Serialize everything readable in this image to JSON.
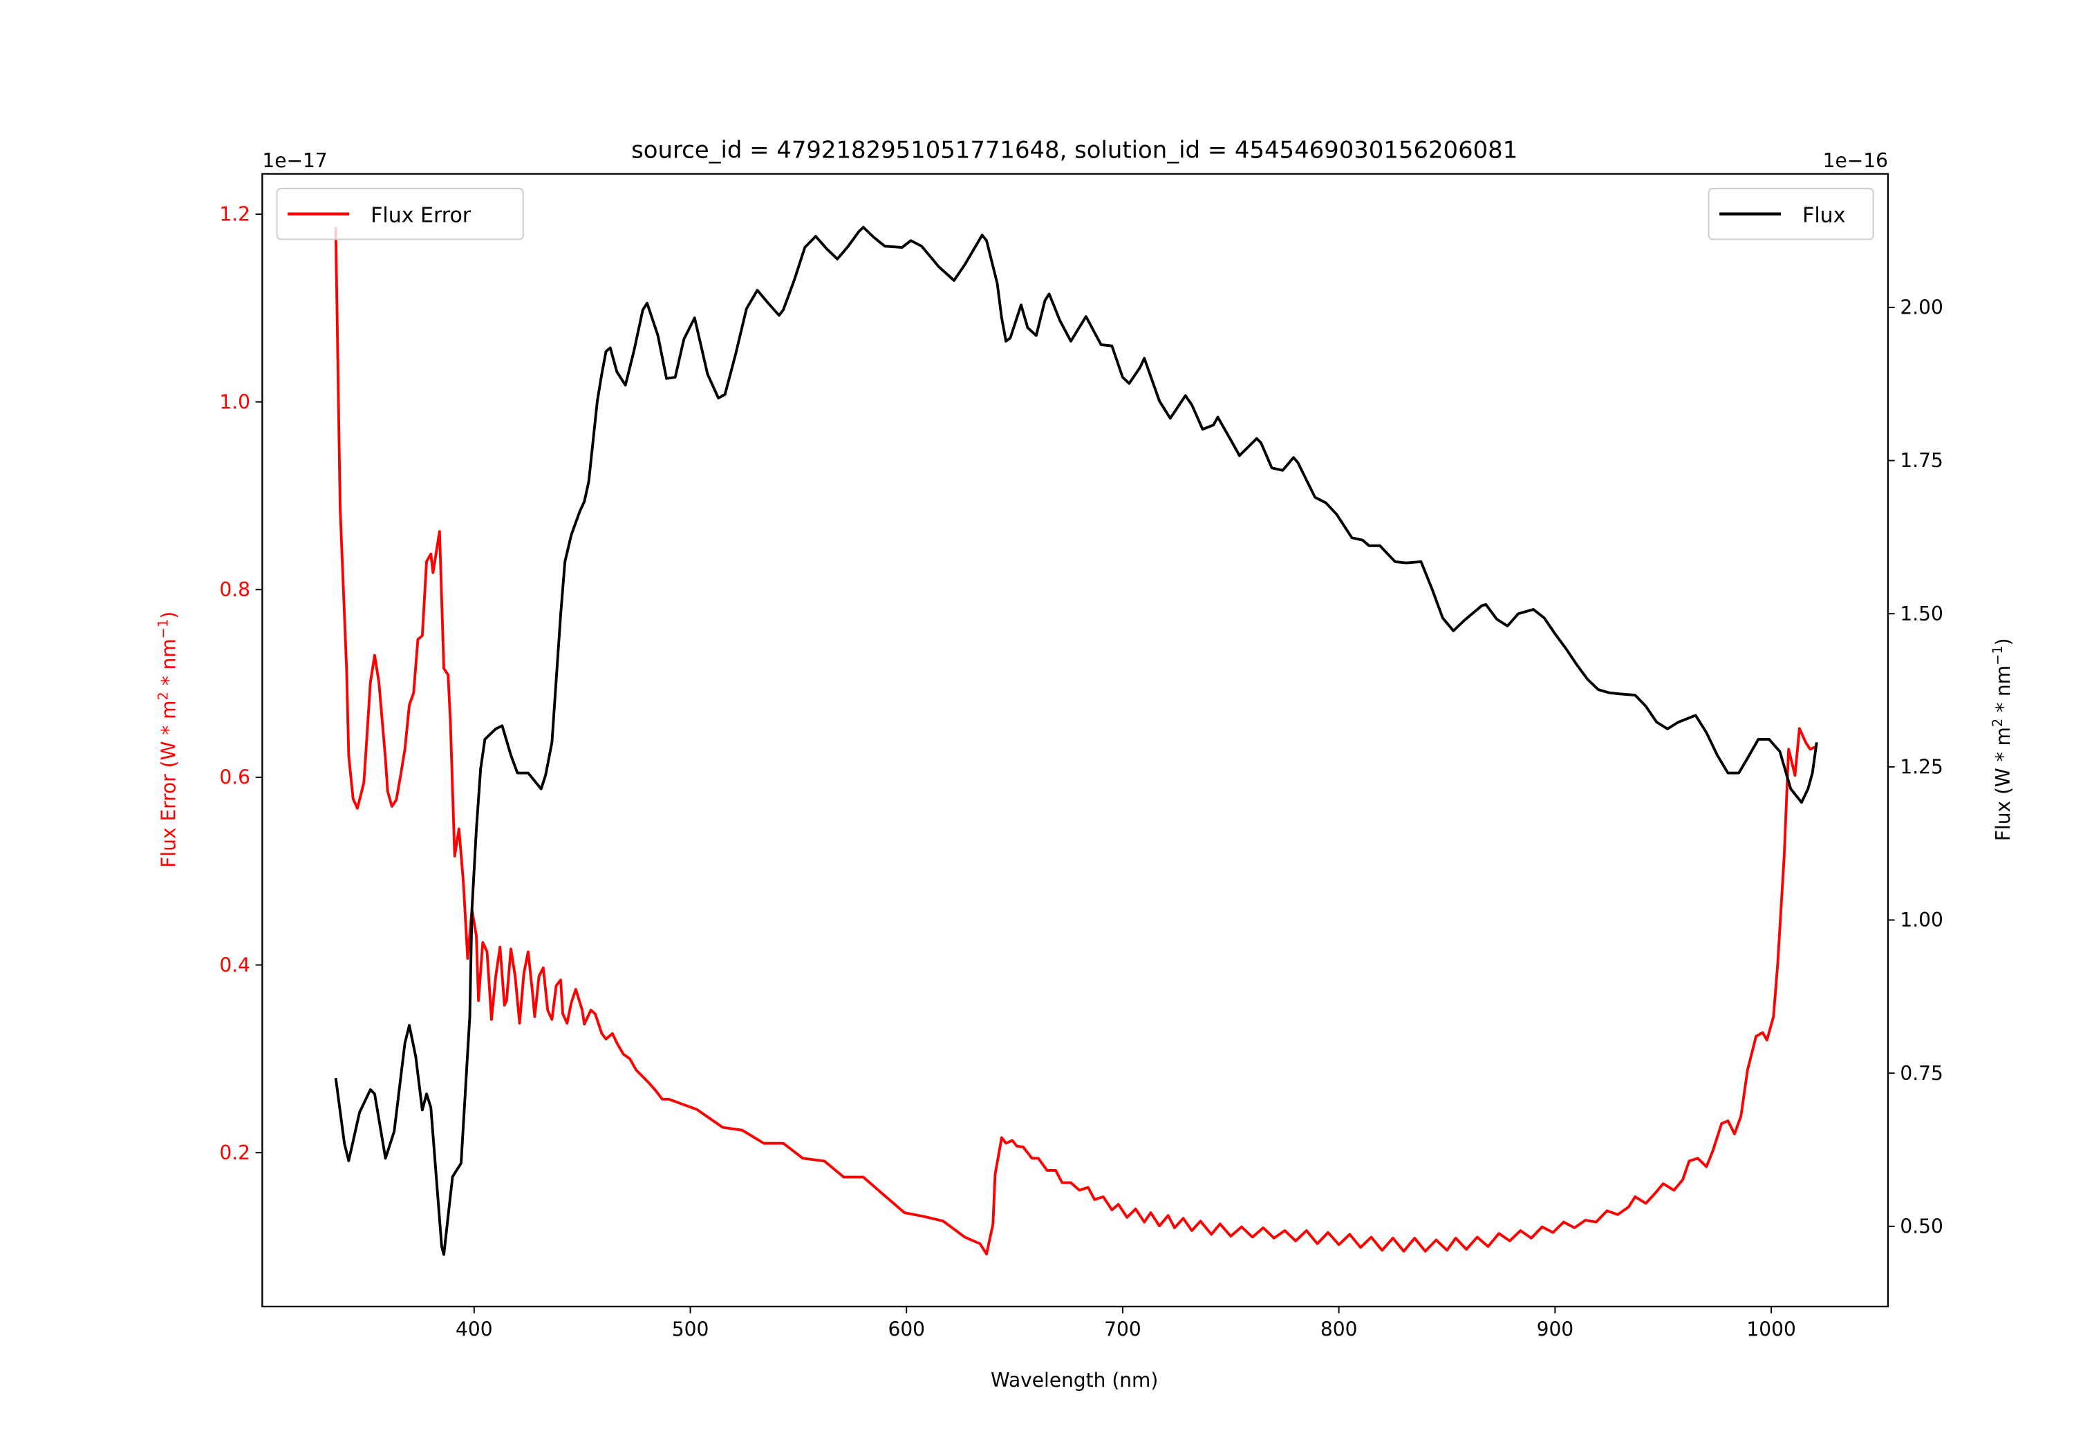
{
  "chart_data": {
    "type": "line",
    "title": "source_id = 4792182951051771648, solution_id = 4545469030156206081",
    "xlabel": "Wavelength (nm)",
    "xlim": [
      302,
      1054
    ],
    "xticks": [
      400,
      500,
      600,
      700,
      800,
      900,
      1000
    ],
    "grid": false,
    "left_axis": {
      "label_parts": [
        "Flux Error (W * m",
        "2",
        " * nm",
        "−1",
        ")"
      ],
      "offset_text": "1e−17",
      "ylim": [
        0.036,
        1.243
      ],
      "ticks": [
        "0.2",
        "0.4",
        "0.6",
        "0.8",
        "1.0",
        "1.2"
      ],
      "color": "#ff0000"
    },
    "right_axis": {
      "label_parts": [
        "Flux (W * m",
        "2",
        " * nm",
        "−1",
        ")"
      ],
      "offset_text": "1e−16",
      "ylim": [
        0.369,
        2.218
      ],
      "ticks": [
        "0.50",
        "0.75",
        "1.00",
        "1.25",
        "1.50",
        "1.75",
        "2.00"
      ],
      "color": "#000000"
    },
    "series": [
      {
        "name": "Flux Error",
        "axis": "left",
        "color": "#ff0000",
        "legend": "top-left",
        "x": [
          336,
          338,
          341,
          342,
          344,
          346,
          349,
          350,
          352,
          354,
          356,
          359,
          360,
          362,
          364,
          366,
          368,
          370,
          372,
          374,
          376,
          378,
          380,
          381,
          384,
          386,
          388,
          389,
          391,
          393,
          395,
          397,
          399,
          401,
          402,
          404,
          406,
          408,
          410,
          412,
          414,
          415,
          417,
          419,
          421,
          423,
          425,
          427,
          428,
          430,
          432,
          434,
          436,
          438,
          440,
          441,
          443,
          445,
          447,
          450,
          451,
          454,
          456,
          459,
          461,
          464,
          466,
          469,
          472,
          475,
          478,
          481,
          484,
          487,
          490,
          503,
          515,
          524,
          534,
          543,
          552,
          562,
          571,
          580,
          589,
          599,
          608,
          617,
          627,
          634,
          637,
          640,
          641,
          644,
          646,
          649,
          651,
          654,
          658,
          661,
          665,
          669,
          672,
          676,
          680,
          684,
          687,
          691,
          695,
          698,
          702,
          706,
          710,
          713,
          717,
          721,
          724,
          728,
          732,
          736,
          741,
          745,
          750,
          755,
          760,
          765,
          770,
          775,
          780,
          785,
          790,
          795,
          800,
          805,
          810,
          815,
          820,
          825,
          830,
          835,
          840,
          845,
          850,
          854,
          859,
          864,
          869,
          874,
          879,
          884,
          889,
          894,
          899,
          904,
          909,
          914,
          919,
          924,
          929,
          934,
          937,
          942,
          946,
          950,
          955,
          959,
          962,
          966,
          970,
          973,
          977,
          980,
          983,
          986,
          989,
          993,
          996,
          998,
          1001,
          1003,
          1006,
          1008,
          1011,
          1013,
          1016,
          1018,
          1021
        ],
        "y": [
          1.186,
          0.887,
          0.716,
          0.623,
          0.577,
          0.567,
          0.594,
          0.63,
          0.701,
          0.73,
          0.701,
          0.619,
          0.585,
          0.569,
          0.576,
          0.602,
          0.63,
          0.677,
          0.69,
          0.747,
          0.751,
          0.83,
          0.838,
          0.818,
          0.862,
          0.716,
          0.709,
          0.659,
          0.516,
          0.545,
          0.488,
          0.407,
          0.459,
          0.431,
          0.362,
          0.424,
          0.414,
          0.342,
          0.388,
          0.419,
          0.357,
          0.362,
          0.417,
          0.388,
          0.338,
          0.391,
          0.414,
          0.37,
          0.345,
          0.388,
          0.397,
          0.352,
          0.342,
          0.378,
          0.384,
          0.348,
          0.338,
          0.36,
          0.374,
          0.352,
          0.337,
          0.352,
          0.348,
          0.327,
          0.321,
          0.327,
          0.317,
          0.305,
          0.3,
          0.288,
          0.281,
          0.274,
          0.266,
          0.257,
          0.257,
          0.246,
          0.227,
          0.224,
          0.21,
          0.21,
          0.194,
          0.191,
          0.174,
          0.174,
          0.156,
          0.136,
          0.132,
          0.127,
          0.11,
          0.103,
          0.092,
          0.124,
          0.177,
          0.216,
          0.21,
          0.213,
          0.207,
          0.206,
          0.194,
          0.194,
          0.181,
          0.181,
          0.168,
          0.168,
          0.16,
          0.163,
          0.15,
          0.153,
          0.139,
          0.145,
          0.131,
          0.14,
          0.126,
          0.136,
          0.122,
          0.133,
          0.12,
          0.13,
          0.117,
          0.127,
          0.113,
          0.124,
          0.111,
          0.121,
          0.11,
          0.12,
          0.109,
          0.117,
          0.106,
          0.117,
          0.103,
          0.115,
          0.102,
          0.113,
          0.099,
          0.11,
          0.096,
          0.109,
          0.095,
          0.109,
          0.095,
          0.107,
          0.096,
          0.109,
          0.097,
          0.11,
          0.1,
          0.114,
          0.106,
          0.117,
          0.109,
          0.121,
          0.115,
          0.126,
          0.12,
          0.128,
          0.126,
          0.138,
          0.134,
          0.142,
          0.153,
          0.146,
          0.156,
          0.167,
          0.16,
          0.171,
          0.191,
          0.194,
          0.185,
          0.202,
          0.231,
          0.234,
          0.22,
          0.239,
          0.288,
          0.324,
          0.328,
          0.32,
          0.345,
          0.402,
          0.516,
          0.63,
          0.602,
          0.652,
          0.637,
          0.63,
          0.633
        ]
      },
      {
        "name": "Flux",
        "axis": "right",
        "color": "#000000",
        "legend": "top-right",
        "x": [
          336,
          340,
          342,
          347,
          352,
          354,
          359,
          363,
          368,
          370,
          373,
          376,
          378,
          380,
          385,
          386,
          390,
          394,
          398,
          399,
          401,
          403,
          405,
          410,
          413,
          417,
          420,
          425,
          431,
          433,
          436,
          440,
          442,
          445,
          449,
          451,
          453,
          457,
          459,
          461,
          463,
          466,
          470,
          474,
          478,
          480,
          485,
          489,
          493,
          497,
          502,
          503,
          508,
          513,
          516,
          521,
          526,
          531,
          536,
          541,
          543,
          548,
          553,
          558,
          563,
          568,
          573,
          578,
          580,
          585,
          590,
          598,
          602,
          607,
          615,
          622,
          627,
          635,
          637,
          642,
          644,
          646,
          648,
          653,
          656,
          660,
          664,
          666,
          671,
          676,
          683,
          690,
          695,
          700,
          703,
          708,
          710,
          717,
          722,
          729,
          732,
          737,
          742,
          744,
          752,
          754,
          762,
          764,
          769,
          774,
          779,
          781,
          789,
          794,
          799,
          806,
          811,
          814,
          819,
          826,
          831,
          838,
          843,
          848,
          853,
          858,
          866,
          868,
          873,
          878,
          883,
          890,
          895,
          900,
          905,
          910,
          915,
          920,
          925,
          930,
          937,
          942,
          947,
          952,
          957,
          965,
          970,
          975,
          980,
          985,
          989,
          994,
          999,
          1004,
          1009,
          1014,
          1017,
          1019,
          1021
        ],
        "y": [
          0.742,
          0.635,
          0.607,
          0.686,
          0.723,
          0.716,
          0.611,
          0.655,
          0.799,
          0.828,
          0.777,
          0.69,
          0.716,
          0.694,
          0.467,
          0.454,
          0.581,
          0.603,
          0.843,
          1.017,
          1.148,
          1.247,
          1.295,
          1.312,
          1.317,
          1.269,
          1.24,
          1.24,
          1.214,
          1.236,
          1.29,
          1.498,
          1.585,
          1.629,
          1.668,
          1.683,
          1.716,
          1.847,
          1.891,
          1.928,
          1.934,
          1.895,
          1.873,
          1.93,
          1.996,
          2.007,
          1.954,
          1.884,
          1.886,
          1.948,
          1.983,
          1.967,
          1.891,
          1.852,
          1.858,
          1.924,
          1.998,
          2.028,
          2.007,
          1.987,
          1.996,
          2.044,
          2.098,
          2.116,
          2.096,
          2.079,
          2.1,
          2.124,
          2.131,
          2.114,
          2.1,
          2.098,
          2.109,
          2.1,
          2.066,
          2.044,
          2.07,
          2.118,
          2.109,
          2.039,
          1.983,
          1.945,
          1.95,
          2.004,
          1.967,
          1.954,
          2.011,
          2.022,
          1.978,
          1.945,
          1.985,
          1.939,
          1.937,
          1.886,
          1.876,
          1.902,
          1.917,
          1.847,
          1.819,
          1.856,
          1.841,
          1.801,
          1.808,
          1.821,
          1.771,
          1.758,
          1.786,
          1.779,
          1.738,
          1.734,
          1.755,
          1.747,
          1.69,
          1.681,
          1.662,
          1.624,
          1.62,
          1.611,
          1.611,
          1.585,
          1.583,
          1.585,
          1.541,
          1.493,
          1.472,
          1.489,
          1.513,
          1.515,
          1.491,
          1.48,
          1.5,
          1.507,
          1.493,
          1.467,
          1.443,
          1.417,
          1.393,
          1.376,
          1.371,
          1.369,
          1.367,
          1.349,
          1.323,
          1.312,
          1.323,
          1.334,
          1.306,
          1.269,
          1.24,
          1.24,
          1.264,
          1.295,
          1.295,
          1.275,
          1.214,
          1.192,
          1.214,
          1.24,
          1.29
        ]
      }
    ]
  }
}
